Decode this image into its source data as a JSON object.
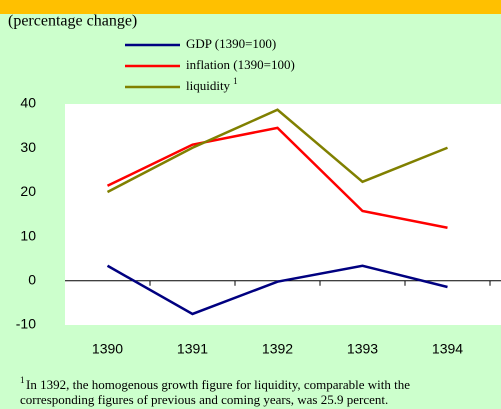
{
  "chart_data": {
    "type": "line",
    "subtitle": "(percentage change)",
    "categories": [
      "1390",
      "1391",
      "1392",
      "1393",
      "1394"
    ],
    "series": [
      {
        "name": "GDP (1390=100)",
        "color": "#000080",
        "values": [
          3.4,
          -7.5,
          -0.2,
          3.4,
          -1.4
        ]
      },
      {
        "name": "inflation (1390=100)",
        "color": "#ff0000",
        "values": [
          21.5,
          30.8,
          34.6,
          15.8,
          12.0
        ]
      },
      {
        "name": "liquidity",
        "color": "#808000",
        "values": [
          20.1,
          30.1,
          38.7,
          22.4,
          30.1
        ]
      }
    ],
    "legend_note": "1",
    "ylim": [
      -10,
      40
    ],
    "yticks": [
      -10,
      0,
      10,
      20,
      30,
      40
    ],
    "grid": false,
    "footnote_marker": "1",
    "footnote": [
      "In 1392, the homogenous growth figure for liquidity, comparable with the",
      "corresponding figures of previous and coming years, was 25.9 percent."
    ]
  }
}
